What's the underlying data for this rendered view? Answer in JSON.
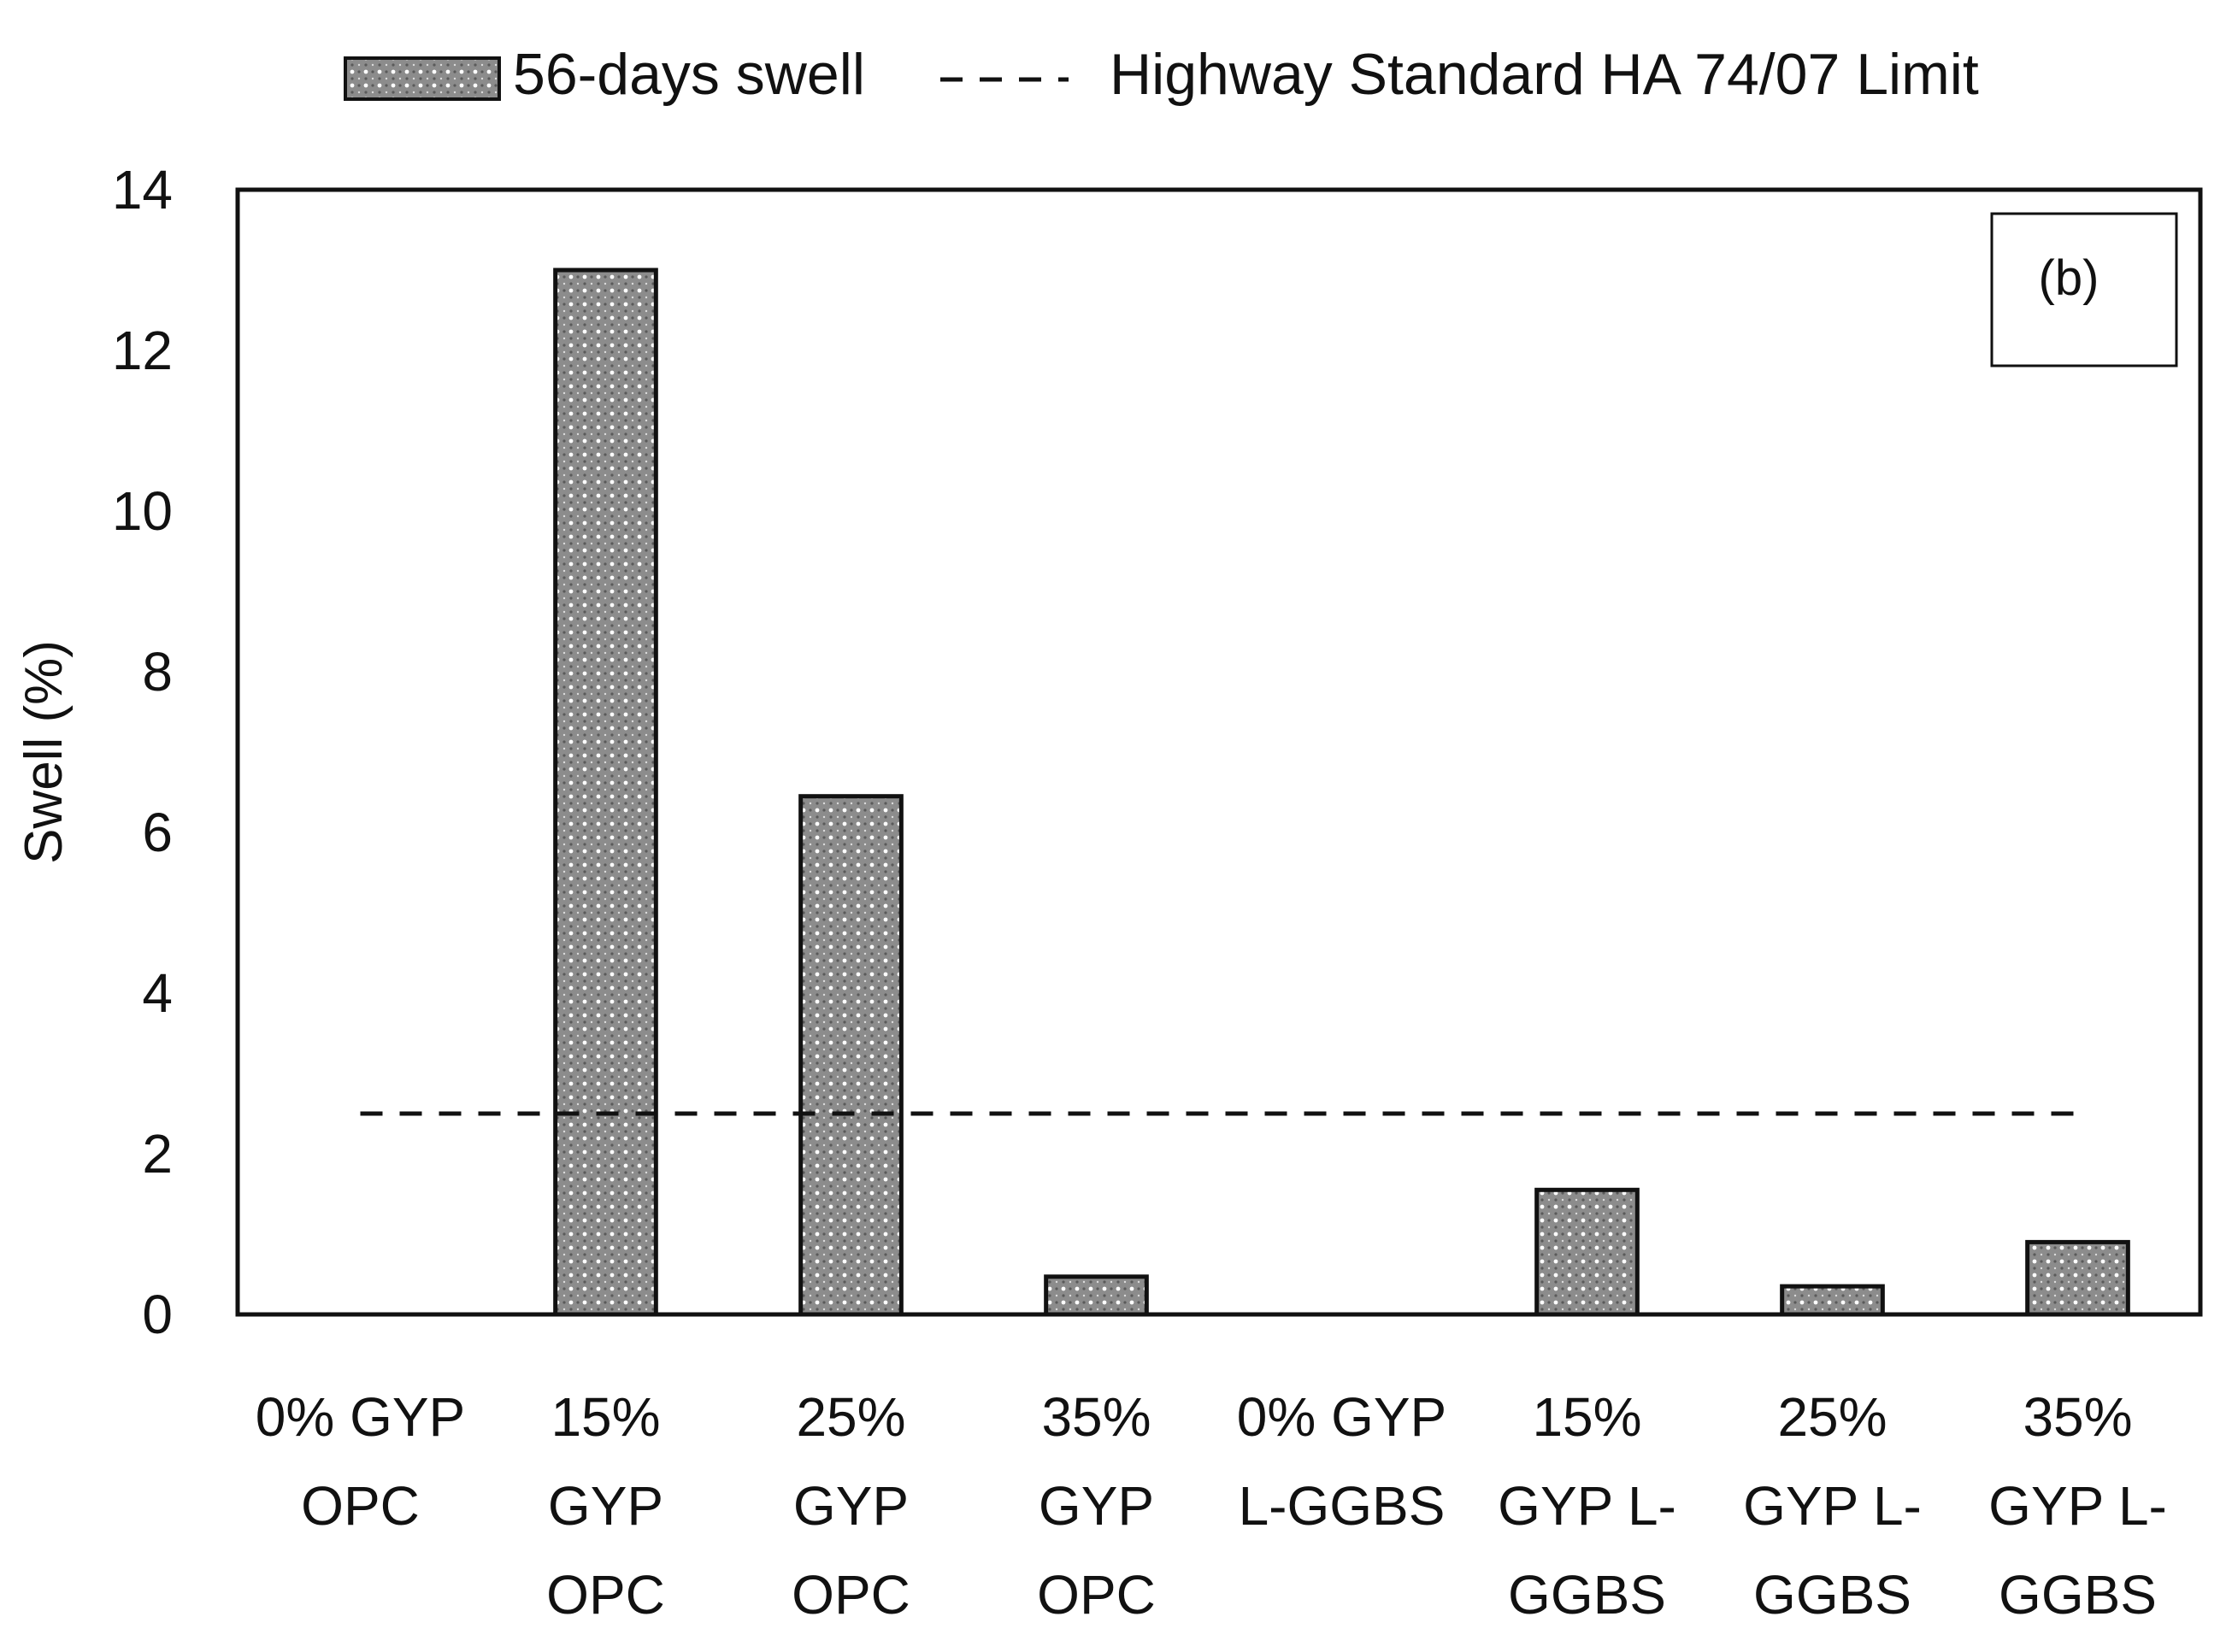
{
  "chart_data": {
    "type": "bar",
    "panel_label": "(b)",
    "ylabel": "Swell (%)",
    "xlabel": "",
    "ylim": [
      0,
      14
    ],
    "yticks": [
      "0",
      "2",
      "4",
      "6",
      "8",
      "10",
      "12",
      "14"
    ],
    "categories": [
      [
        "0% GYP",
        "OPC"
      ],
      [
        "15%",
        "GYP",
        "OPC"
      ],
      [
        "25%",
        "GYP",
        "OPC"
      ],
      [
        "35%",
        "GYP",
        "OPC"
      ],
      [
        "0% GYP",
        "L-GGBS"
      ],
      [
        "15%",
        "GYP L-",
        "GGBS"
      ],
      [
        "25%",
        "GYP L-",
        "GGBS"
      ],
      [
        "35%",
        "GYP L-",
        "GGBS"
      ]
    ],
    "series": [
      {
        "name": "56-days swell",
        "values": [
          0,
          13.0,
          6.45,
          0.47,
          0,
          1.55,
          0.35,
          0.9
        ],
        "fill": "dotted-gray"
      }
    ],
    "reference_line": {
      "name": "Highway Standard HA 74/07 Limit",
      "value": 2.5,
      "style": "dashed"
    },
    "legend": {
      "position": "top"
    },
    "colors": {
      "bar_fill": "#8c8c8c",
      "bar_dot": "#ffffff",
      "axis": "#111111"
    },
    "grid": false
  }
}
